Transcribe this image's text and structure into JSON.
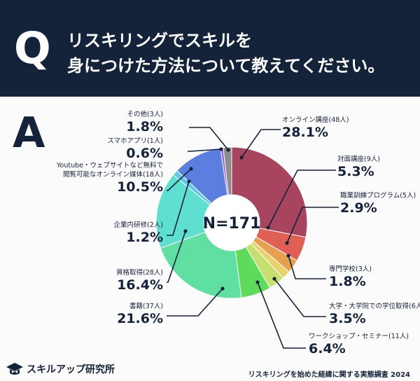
{
  "header": {
    "q_label": "Q",
    "question_line1": "リスキリングでスキルを",
    "question_line2": "身につけた方法について教えてください。"
  },
  "answer_label": "A",
  "chart_data": {
    "type": "pie",
    "donut": true,
    "center_label": "N=171",
    "slices": [
      {
        "name": "オンライン講座(48人)",
        "pct": "28.1%",
        "value": 28.1,
        "color": "#a9445e"
      },
      {
        "name": "対面講座(9人)",
        "pct": "5.3%",
        "value": 5.3,
        "color": "#e06055"
      },
      {
        "name": "職業訓練プログラム(5人)",
        "pct": "2.9%",
        "value": 2.9,
        "color": "#e8a050"
      },
      {
        "name": "専門学校(3人)",
        "pct": "1.8%",
        "value": 1.8,
        "color": "#e9d26a"
      },
      {
        "name": "大学・大学院での学位取得(6人)",
        "pct": "3.5%",
        "value": 3.5,
        "color": "#c5e070"
      },
      {
        "name": "ワークショップ・セミナー(11人)",
        "pct": "6.4%",
        "value": 6.4,
        "color": "#5edb5a"
      },
      {
        "name": "書籍(37人)",
        "pct": "21.6%",
        "value": 21.6,
        "color": "#5fe0a2"
      },
      {
        "name": "資格取得(28人)",
        "pct": "16.4%",
        "value": 16.4,
        "color": "#5edfd0"
      },
      {
        "name": "企業内研修(2人)",
        "pct": "1.2%",
        "value": 1.2,
        "color": "#5fc8e8"
      },
      {
        "name_lines": [
          "Youtube・ウェブサイトなど無料で",
          "閲覧可能なオンライン媒体(18人)"
        ],
        "name": "Youtube・ウェブサイトなど無料で閲覧可能なオンライン媒体(18人)",
        "pct": "10.5%",
        "value": 10.5,
        "color": "#5c7ee0"
      },
      {
        "name": "スマホアプリ(1人)",
        "pct": "0.6%",
        "value": 0.6,
        "color": "#9a5fe0"
      },
      {
        "name": "その他(3人)",
        "pct": "1.8%",
        "value": 1.8,
        "color": "#8c8c8c"
      }
    ]
  },
  "footer": {
    "logo_text": "スキルアップ研究所",
    "source": "リスキリングを始めた経緯に関する実態調査 2024"
  }
}
